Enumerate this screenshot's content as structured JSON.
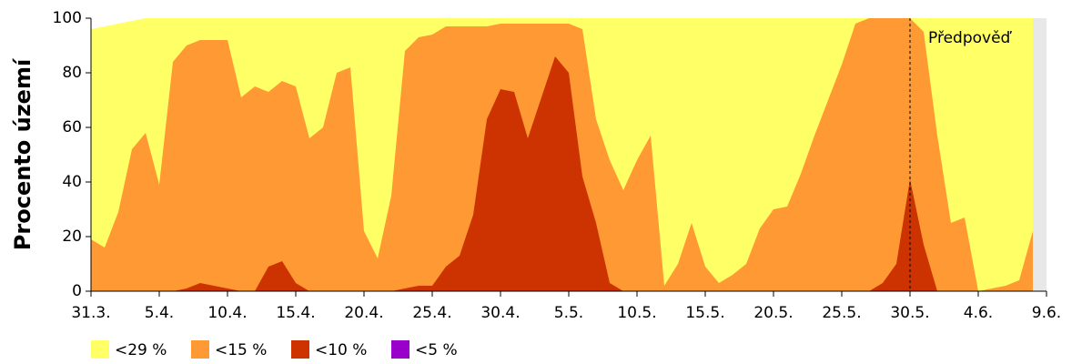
{
  "chart_data": {
    "type": "area",
    "y_label": "Procento území",
    "x": [
      0,
      1,
      2,
      3,
      4,
      5,
      6,
      7,
      8,
      9,
      10,
      11,
      12,
      13,
      14,
      15,
      16,
      17,
      18,
      19,
      20,
      21,
      22,
      23,
      24,
      25,
      26,
      27,
      28,
      29,
      30,
      31,
      32,
      33,
      34,
      35,
      36,
      37,
      38,
      39,
      40,
      41,
      42,
      43,
      44,
      45,
      46,
      47,
      48,
      49,
      50,
      51,
      52,
      53,
      54,
      55,
      56,
      57,
      58,
      59,
      60,
      61,
      62,
      63,
      64,
      65,
      66,
      67,
      68,
      69
    ],
    "xlim": [
      0,
      70
    ],
    "xticks": [
      {
        "value": 0,
        "label": "31.3."
      },
      {
        "value": 5,
        "label": "5.4."
      },
      {
        "value": 10,
        "label": "10.4."
      },
      {
        "value": 15,
        "label": "15.4."
      },
      {
        "value": 20,
        "label": "20.4."
      },
      {
        "value": 25,
        "label": "25.4."
      },
      {
        "value": 30,
        "label": "30.4."
      },
      {
        "value": 35,
        "label": "5.5."
      },
      {
        "value": 40,
        "label": "10.5."
      },
      {
        "value": 45,
        "label": "15.5."
      },
      {
        "value": 50,
        "label": "20.5."
      },
      {
        "value": 55,
        "label": "25.5."
      },
      {
        "value": 60,
        "label": "30.5."
      },
      {
        "value": 65,
        "label": "4.6."
      },
      {
        "value": 70,
        "label": "9.6."
      }
    ],
    "ylim": [
      0,
      100
    ],
    "yticks": [
      0,
      20,
      40,
      60,
      80,
      100
    ],
    "forecast": {
      "x": 60,
      "label": "Předpověď"
    },
    "series": [
      {
        "name": "<29 %",
        "color": "#ffff66",
        "values": [
          96,
          97,
          98,
          99,
          100,
          100,
          100,
          100,
          100,
          100,
          100,
          100,
          100,
          100,
          100,
          100,
          100,
          100,
          100,
          100,
          100,
          100,
          100,
          100,
          100,
          100,
          100,
          100,
          100,
          100,
          100,
          100,
          100,
          100,
          100,
          100,
          100,
          100,
          100,
          100,
          100,
          100,
          100,
          100,
          100,
          100,
          100,
          100,
          100,
          100,
          100,
          100,
          100,
          100,
          100,
          100,
          100,
          100,
          100,
          100,
          100,
          100,
          100,
          100,
          100,
          100,
          100,
          100,
          100,
          100
        ]
      },
      {
        "name": "<15 %",
        "color": "#ff9933",
        "values": [
          19,
          16,
          29,
          52,
          58,
          39,
          84,
          90,
          92,
          92,
          92,
          71,
          75,
          73,
          77,
          75,
          56,
          60,
          80,
          82,
          22,
          12,
          35,
          88,
          93,
          94,
          97,
          97,
          97,
          97,
          98,
          98,
          98,
          98,
          98,
          98,
          96,
          63,
          48,
          37,
          48,
          57,
          2,
          10,
          25,
          9,
          3,
          6,
          10,
          23,
          30,
          31,
          43,
          57,
          70,
          83,
          98,
          100,
          100,
          100,
          100,
          95,
          57,
          25,
          27,
          0,
          1,
          2,
          4,
          22
        ]
      },
      {
        "name": "<10 %",
        "color": "#cc3300",
        "values": [
          0,
          0,
          0,
          0,
          0,
          0,
          0,
          1,
          3,
          2,
          1,
          0,
          0,
          9,
          11,
          3,
          0,
          0,
          0,
          0,
          0,
          0,
          0,
          1,
          2,
          2,
          9,
          13,
          28,
          63,
          74,
          73,
          56,
          71,
          86,
          80,
          42,
          25,
          3,
          0,
          0,
          0,
          0,
          0,
          0,
          0,
          0,
          0,
          0,
          0,
          0,
          0,
          0,
          0,
          0,
          0,
          0,
          0,
          3,
          10,
          41,
          17,
          0,
          0,
          0,
          0,
          0,
          0,
          0,
          0
        ]
      },
      {
        "name": "<5 %",
        "color": "#9900cc",
        "values": [
          0,
          0,
          0,
          0,
          0,
          0,
          0,
          0,
          0,
          0,
          0,
          0,
          0,
          0,
          0,
          0,
          0,
          0,
          0,
          0,
          0,
          0,
          0,
          0,
          0,
          0,
          0,
          0,
          0,
          0,
          0,
          0,
          0,
          0,
          0,
          0,
          0,
          0,
          0,
          0,
          0,
          0,
          0,
          0,
          0,
          0,
          0,
          0,
          0,
          0,
          0,
          0,
          0,
          0,
          0,
          0,
          0,
          0,
          0,
          0,
          0,
          0,
          0,
          0,
          0,
          0,
          0,
          0,
          0,
          0
        ]
      }
    ]
  }
}
